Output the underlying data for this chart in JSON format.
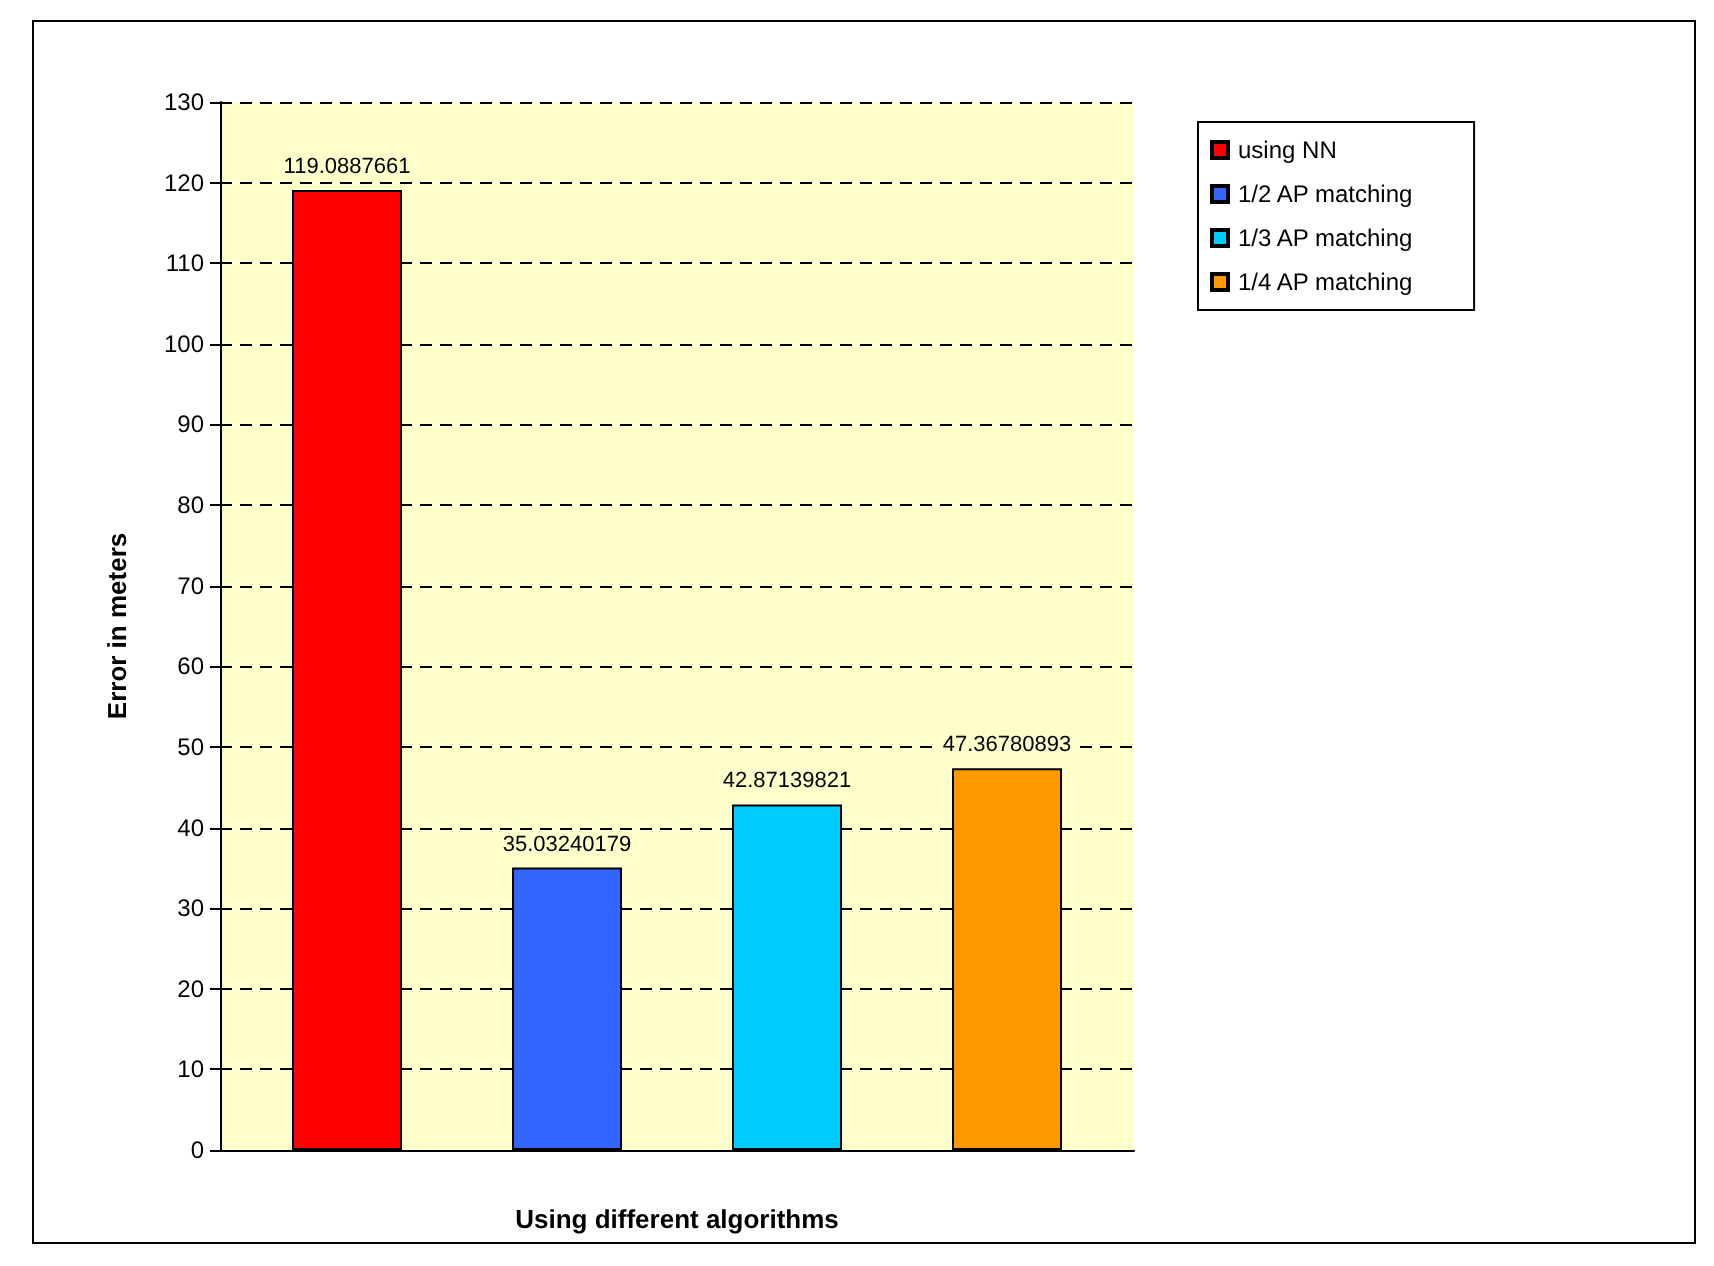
{
  "chart_data": {
    "type": "bar",
    "xlabel": "Using different algorithms",
    "ylabel": "Error in meters",
    "categories": [
      null
    ],
    "series": [
      {
        "name": "using NN",
        "color": "#ff0000",
        "values": [
          119.0887661
        ]
      },
      {
        "name": "1/2 AP matching",
        "color": "#3366ff",
        "values": [
          35.03240179
        ]
      },
      {
        "name": "1/3 AP matching",
        "color": "#00ccff",
        "values": [
          42.87139821
        ]
      },
      {
        "name": "1/4 AP matching",
        "color": "#ff9900",
        "values": [
          47.36780893
        ]
      }
    ],
    "ylim": [
      0,
      130
    ],
    "yticks": [
      0,
      10,
      20,
      30,
      40,
      50,
      60,
      70,
      80,
      90,
      100,
      110,
      120,
      130
    ],
    "grid": "y",
    "legend": "top right",
    "data_labels": true
  }
}
